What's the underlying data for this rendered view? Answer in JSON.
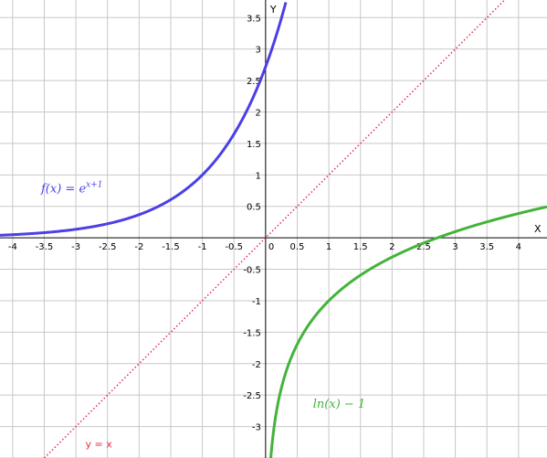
{
  "chart_data": {
    "type": "line",
    "title": "",
    "xlabel": "X",
    "ylabel": "Y",
    "xlim": [
      -4.2,
      4.45
    ],
    "ylim": [
      -3.5,
      3.78
    ],
    "grid": true,
    "x_ticks": [
      -4,
      -3.5,
      -3,
      -2.5,
      -2,
      -1.5,
      -1,
      -0.5,
      0.5,
      1,
      1.5,
      2,
      2.5,
      3,
      3.5,
      4
    ],
    "x_tick_labels": [
      "-4",
      "-3.5",
      "-3",
      "-2.5",
      "-2",
      "-1.5",
      "-1",
      "-0.5",
      "0.5",
      "1",
      "1.5",
      "2",
      "2.5",
      "3",
      "3.5",
      "4"
    ],
    "y_ticks": [
      -3,
      -2.5,
      -2,
      -1.5,
      -1,
      -0.5,
      0.5,
      1,
      1.5,
      2,
      2.5,
      3,
      3.5
    ],
    "y_tick_labels": [
      "-3",
      "-2.5",
      "-2",
      "-1.5",
      "-1",
      "-0.5",
      "0.5",
      "1",
      "1.5",
      "2",
      "2.5",
      "3",
      "3.5"
    ],
    "origin_label": "0",
    "series": [
      {
        "label": "f(x)  =  e^{x+1}",
        "color": "#4b40e6",
        "style": "solid",
        "x": [
          -4.2,
          -4,
          -3.5,
          -3,
          -2.5,
          -2,
          -1.5,
          -1,
          -0.5,
          0,
          0.25,
          0.32
        ],
        "y": [
          0.041,
          0.05,
          0.082,
          0.135,
          0.223,
          0.368,
          0.607,
          1,
          1.649,
          2.718,
          3.49,
          3.78
        ]
      },
      {
        "label": "ln(x) − 1",
        "color": "#43b33a",
        "style": "solid",
        "x": [
          0.082,
          0.1,
          0.2,
          0.3,
          0.5,
          0.75,
          1,
          1.5,
          2,
          2.5,
          2.718,
          3,
          3.5,
          4,
          4.45
        ],
        "y": [
          -3.5,
          -3.303,
          -2.609,
          -2.204,
          -1.693,
          -1.288,
          -1,
          -0.595,
          -0.307,
          -0.084,
          0,
          0.099,
          0.253,
          0.386,
          0.493
        ]
      },
      {
        "label": "y = x",
        "color": "#e2304a",
        "style": "dotted",
        "x": [
          -3.5,
          3.78
        ],
        "y": [
          -3.5,
          3.78
        ]
      }
    ]
  }
}
